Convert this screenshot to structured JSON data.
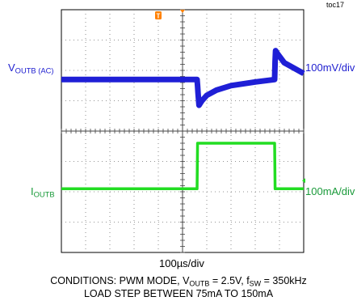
{
  "figure_id": "toc17",
  "chart_data": [
    {
      "type": "line",
      "channel_label": {
        "main": "V",
        "sub": "OUTB (AC)"
      },
      "scale_label": "100mV/div",
      "color": "#1f1fd6",
      "x_unit": "µs",
      "y_unit": "mV",
      "x": [
        0,
        80,
        81,
        82,
        84,
        90,
        100,
        120,
        150,
        200,
        240,
        241,
        242,
        246,
        260,
        300
      ],
      "y": [
        0,
        0,
        -20,
        -45,
        -85,
        -70,
        -52,
        -35,
        -20,
        -8,
        0,
        60,
        95,
        85,
        55,
        20
      ],
      "xlim": [
        -200,
        300
      ],
      "ylim": [
        -400,
        400
      ]
    },
    {
      "type": "line",
      "channel_label": {
        "main": "I",
        "sub": "OUTB"
      },
      "scale_label": "100mA/div",
      "color": "#22dd22",
      "x_unit": "µs",
      "y_unit": "mA",
      "x": [
        -200,
        80,
        81,
        240,
        241,
        300
      ],
      "y": [
        75,
        75,
        150,
        150,
        75,
        75
      ],
      "xlim": [
        -200,
        300
      ],
      "ylim": [
        -100,
        300
      ]
    }
  ],
  "time_scale": "100µs/div",
  "conditions_line1": {
    "p1": "CONDITIONS: PWM MODE, V",
    "sub1": "OUTB",
    "p2": " = 2.5V, f",
    "sub2": "SW",
    "p3": " = 350kHz"
  },
  "conditions_line2": "LOAD STEP BETWEEN 75mA TO 150mA",
  "colors": {
    "voltage_label": "#2020d0",
    "current_label": "#1a9a3a",
    "trigger_marker": "#ff8000",
    "grid": "#707070"
  },
  "markers": {
    "trigger_letter": "T"
  }
}
